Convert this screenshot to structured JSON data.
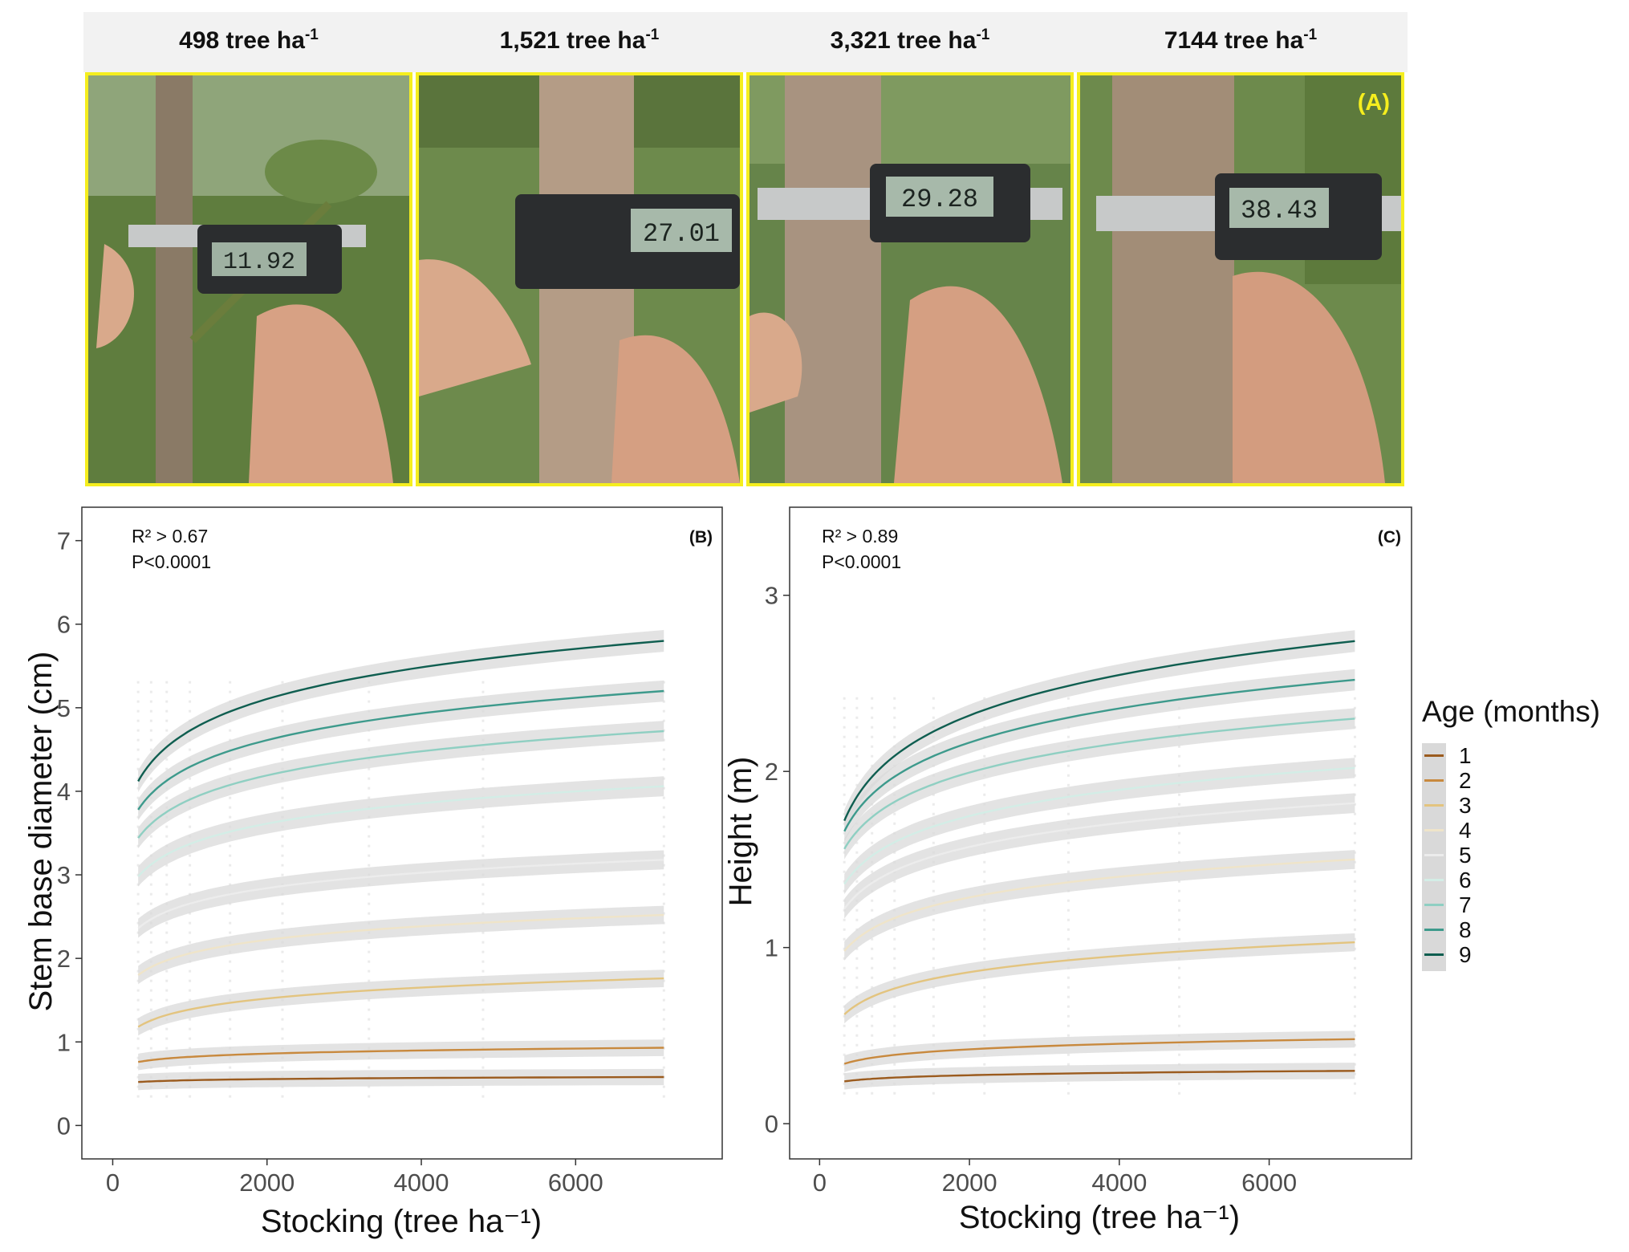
{
  "photos": {
    "panel_tag": "(A)",
    "items": [
      {
        "density": "498 tree ha",
        "exponent": "-1",
        "reading": "11.92"
      },
      {
        "density": "1,521 tree ha",
        "exponent": "-1",
        "reading": "27.01"
      },
      {
        "density": "3,321 tree ha",
        "exponent": "-1",
        "reading": "29.28"
      },
      {
        "density": "7144 tree ha",
        "exponent": "-1",
        "reading": "38.43"
      }
    ]
  },
  "colors": {
    "1": "#9b5b1e",
    "2": "#c8893e",
    "3": "#e3c47f",
    "4": "#efe4c9",
    "5": "#ececec",
    "6": "#d3ede6",
    "7": "#8fcfc2",
    "8": "#3d9a8c",
    "9": "#0f5e50",
    "ribbon": "#d9d9d9",
    "frame": "#333333",
    "photo_border": "#f5ee1e"
  },
  "chart_data": [
    {
      "type": "line",
      "panel": "(B)",
      "annotations": [
        "R² > 0.67",
        "P<0.0001"
      ],
      "xlabel": "Stocking (tree ha⁻¹)",
      "ylabel": "Stem base diameter (cm)",
      "xlim": [
        -400,
        7900
      ],
      "ylim": [
        -0.4,
        7.4
      ],
      "xticks": [
        0,
        2000,
        4000,
        6000
      ],
      "yticks": [
        0,
        1,
        2,
        3,
        4,
        5,
        6,
        7
      ],
      "model": "y = a + b * ln(x); curves drawn from x = 330 to x = 7144 with confidence ribbon",
      "x_observed": [
        330,
        498,
        700,
        1000,
        1521,
        2200,
        3321,
        4800,
        7144
      ],
      "series": [
        {
          "name": "1",
          "x": [
            330,
            7144
          ],
          "y": [
            0.52,
            0.58
          ]
        },
        {
          "name": "2",
          "x": [
            330,
            7144
          ],
          "y": [
            0.76,
            0.93
          ]
        },
        {
          "name": "3",
          "x": [
            330,
            7144
          ],
          "y": [
            1.18,
            1.76
          ]
        },
        {
          "name": "4",
          "x": [
            330,
            7144
          ],
          "y": [
            1.8,
            2.52
          ]
        },
        {
          "name": "5",
          "x": [
            330,
            7144
          ],
          "y": [
            2.36,
            3.18
          ]
        },
        {
          "name": "6",
          "x": [
            330,
            7144
          ],
          "y": [
            2.98,
            4.06
          ]
        },
        {
          "name": "7",
          "x": [
            330,
            7144
          ],
          "y": [
            3.44,
            4.72
          ]
        },
        {
          "name": "8",
          "x": [
            330,
            7144
          ],
          "y": [
            3.78,
            5.2
          ]
        },
        {
          "name": "9",
          "x": [
            330,
            7144
          ],
          "y": [
            4.12,
            5.8
          ]
        }
      ]
    },
    {
      "type": "line",
      "panel": "(C)",
      "annotations": [
        "R² > 0.89",
        "P<0.0001"
      ],
      "xlabel": "Stocking (tree ha⁻¹)",
      "ylabel": "Height (m)",
      "xlim": [
        -400,
        7900
      ],
      "ylim": [
        -0.2,
        3.5
      ],
      "xticks": [
        0,
        2000,
        4000,
        6000
      ],
      "yticks": [
        0,
        1,
        2,
        3
      ],
      "model": "y = a + b * ln(x); curves drawn from x = 330 to x = 7144 with confidence ribbon",
      "x_observed": [
        330,
        498,
        700,
        1000,
        1521,
        2200,
        3321,
        4800,
        7144
      ],
      "series": [
        {
          "name": "1",
          "x": [
            330,
            7144
          ],
          "y": [
            0.24,
            0.3
          ]
        },
        {
          "name": "2",
          "x": [
            330,
            7144
          ],
          "y": [
            0.34,
            0.48
          ]
        },
        {
          "name": "3",
          "x": [
            330,
            7144
          ],
          "y": [
            0.62,
            1.03
          ]
        },
        {
          "name": "4",
          "x": [
            330,
            7144
          ],
          "y": [
            0.98,
            1.5
          ]
        },
        {
          "name": "5",
          "x": [
            330,
            7144
          ],
          "y": [
            1.22,
            1.82
          ]
        },
        {
          "name": "6",
          "x": [
            330,
            7144
          ],
          "y": [
            1.36,
            2.02
          ]
        },
        {
          "name": "7",
          "x": [
            330,
            7144
          ],
          "y": [
            1.56,
            2.3
          ]
        },
        {
          "name": "8",
          "x": [
            330,
            7144
          ],
          "y": [
            1.66,
            2.52
          ]
        },
        {
          "name": "9",
          "x": [
            330,
            7144
          ],
          "y": [
            1.72,
            2.74
          ]
        }
      ]
    }
  ],
  "legend": {
    "title": "Age (months)",
    "items": [
      "1",
      "2",
      "3",
      "4",
      "5",
      "6",
      "7",
      "8",
      "9"
    ]
  }
}
